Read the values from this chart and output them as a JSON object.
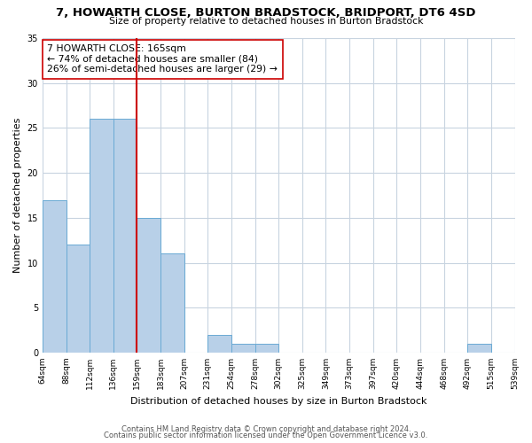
{
  "title": "7, HOWARTH CLOSE, BURTON BRADSTOCK, BRIDPORT, DT6 4SD",
  "subtitle": "Size of property relative to detached houses in Burton Bradstock",
  "xlabel": "Distribution of detached houses by size in Burton Bradstock",
  "ylabel": "Number of detached properties",
  "bin_labels": [
    "64sqm",
    "88sqm",
    "112sqm",
    "136sqm",
    "159sqm",
    "183sqm",
    "207sqm",
    "231sqm",
    "254sqm",
    "278sqm",
    "302sqm",
    "325sqm",
    "349sqm",
    "373sqm",
    "397sqm",
    "420sqm",
    "444sqm",
    "468sqm",
    "492sqm",
    "515sqm",
    "539sqm"
  ],
  "counts": [
    17,
    12,
    26,
    26,
    15,
    11,
    0,
    2,
    1,
    1,
    0,
    0,
    0,
    0,
    0,
    0,
    0,
    0,
    1,
    0
  ],
  "bar_color": "#b8d0e8",
  "bar_edge_color": "#6aaad4",
  "vline_bin": 4,
  "vline_color": "#cc0000",
  "annotation_text": "7 HOWARTH CLOSE: 165sqm\n← 74% of detached houses are smaller (84)\n26% of semi-detached houses are larger (29) →",
  "annotation_box_color": "#ffffff",
  "annotation_box_edge": "#cc0000",
  "ylim": [
    0,
    35
  ],
  "yticks": [
    0,
    5,
    10,
    15,
    20,
    25,
    30,
    35
  ],
  "footer_line1": "Contains HM Land Registry data © Crown copyright and database right 2024.",
  "footer_line2": "Contains public sector information licensed under the Open Government Licence v3.0.",
  "bg_color": "#ffffff",
  "grid_color": "#c8d4e0"
}
